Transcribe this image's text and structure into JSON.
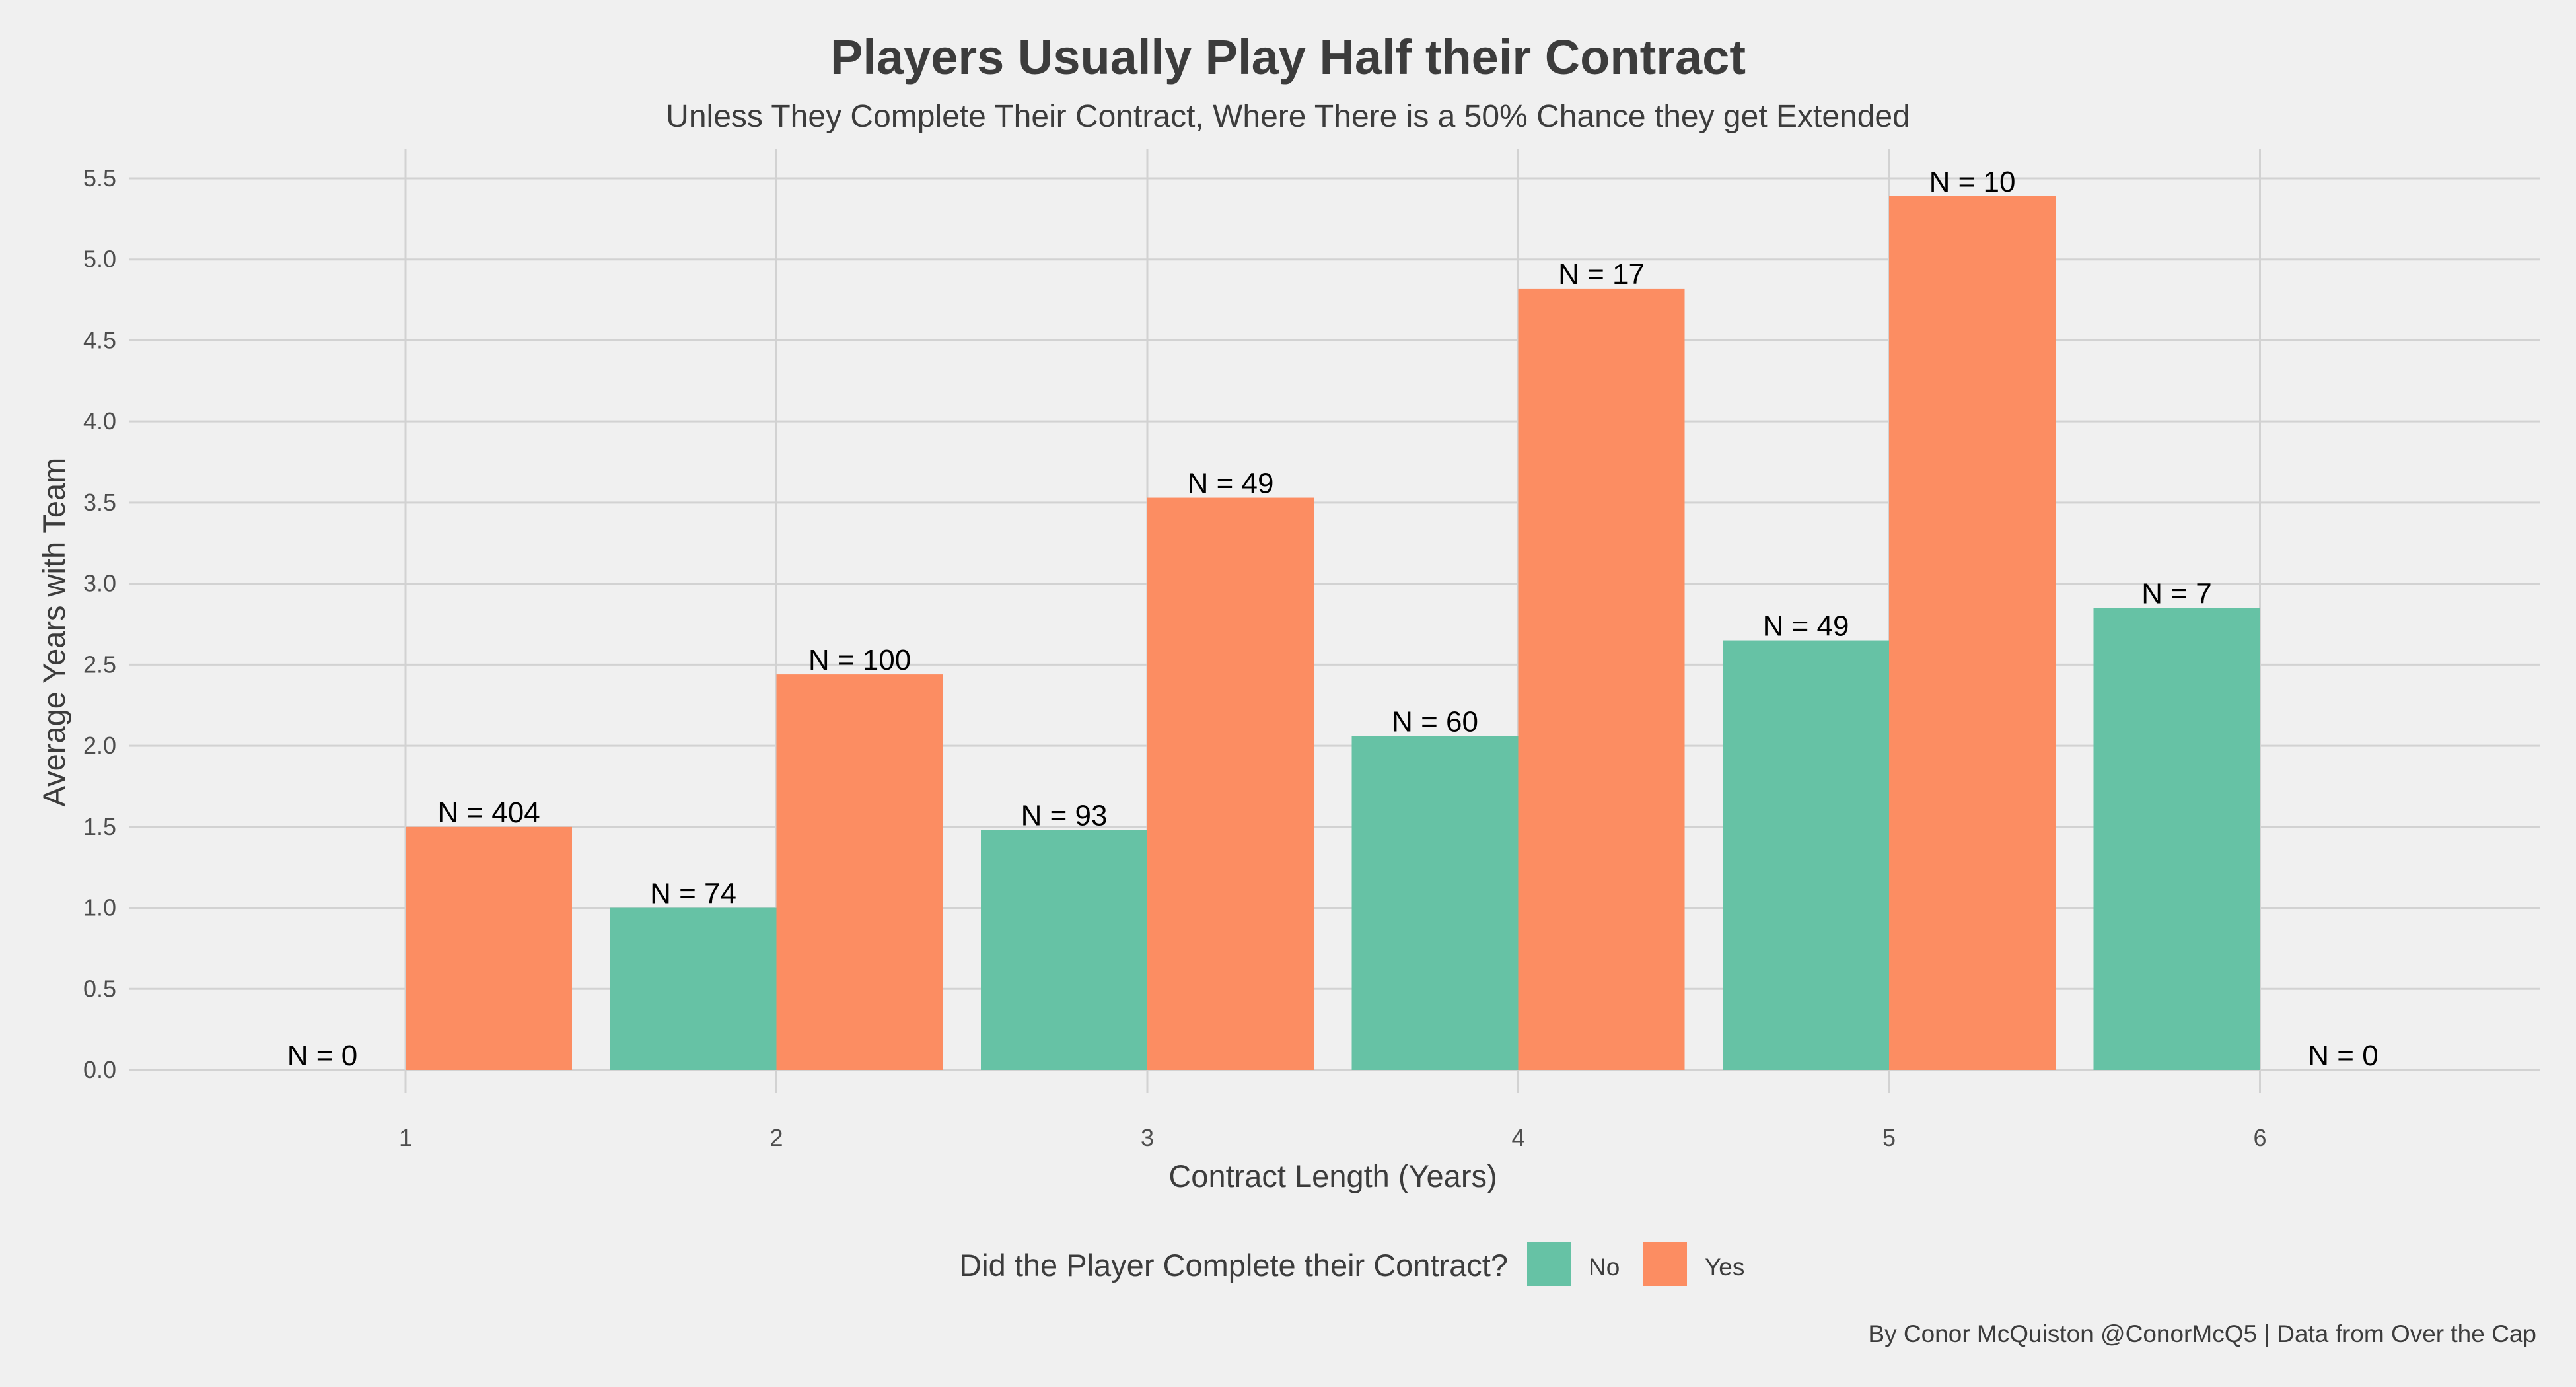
{
  "chart_data": {
    "type": "bar",
    "title": "Players Usually Play Half their Contract",
    "subtitle": "Unless They Complete Their Contract, Where There is a 50% Chance they get Extended",
    "xlabel": "Contract Length (Years)",
    "ylabel": "Average Years with Team",
    "categories": [
      "1",
      "2",
      "3",
      "4",
      "5",
      "6"
    ],
    "ylim": [
      0,
      5.6
    ],
    "y_ticks": [
      "0.0",
      "0.5",
      "1.0",
      "1.5",
      "2.0",
      "2.5",
      "3.0",
      "3.5",
      "4.0",
      "4.5",
      "5.0",
      "5.5"
    ],
    "y_tick_values": [
      0,
      0.5,
      1.0,
      1.5,
      2.0,
      2.5,
      3.0,
      3.5,
      4.0,
      4.5,
      5.0,
      5.5
    ],
    "grid": true,
    "legend_title": "Did the Player Complete their Contract?",
    "legend_position": "bottom",
    "series": [
      {
        "name": "No",
        "color": "#66c2a5",
        "values": [
          0,
          1.0,
          1.48,
          2.06,
          2.65,
          2.85
        ],
        "labels": [
          "N = 0",
          "N = 74",
          "N = 93",
          "N = 60",
          "N = 49",
          "N = 7"
        ]
      },
      {
        "name": "Yes",
        "color": "#fc8d62",
        "values": [
          1.5,
          2.44,
          3.53,
          4.82,
          5.39,
          0
        ],
        "labels": [
          "N = 404",
          "N = 100",
          "N = 49",
          "N = 17",
          "N = 10",
          "N = 0"
        ]
      }
    ],
    "caption": "By Conor McQuiston @ConorMcQ5 | Data from Over the Cap"
  }
}
